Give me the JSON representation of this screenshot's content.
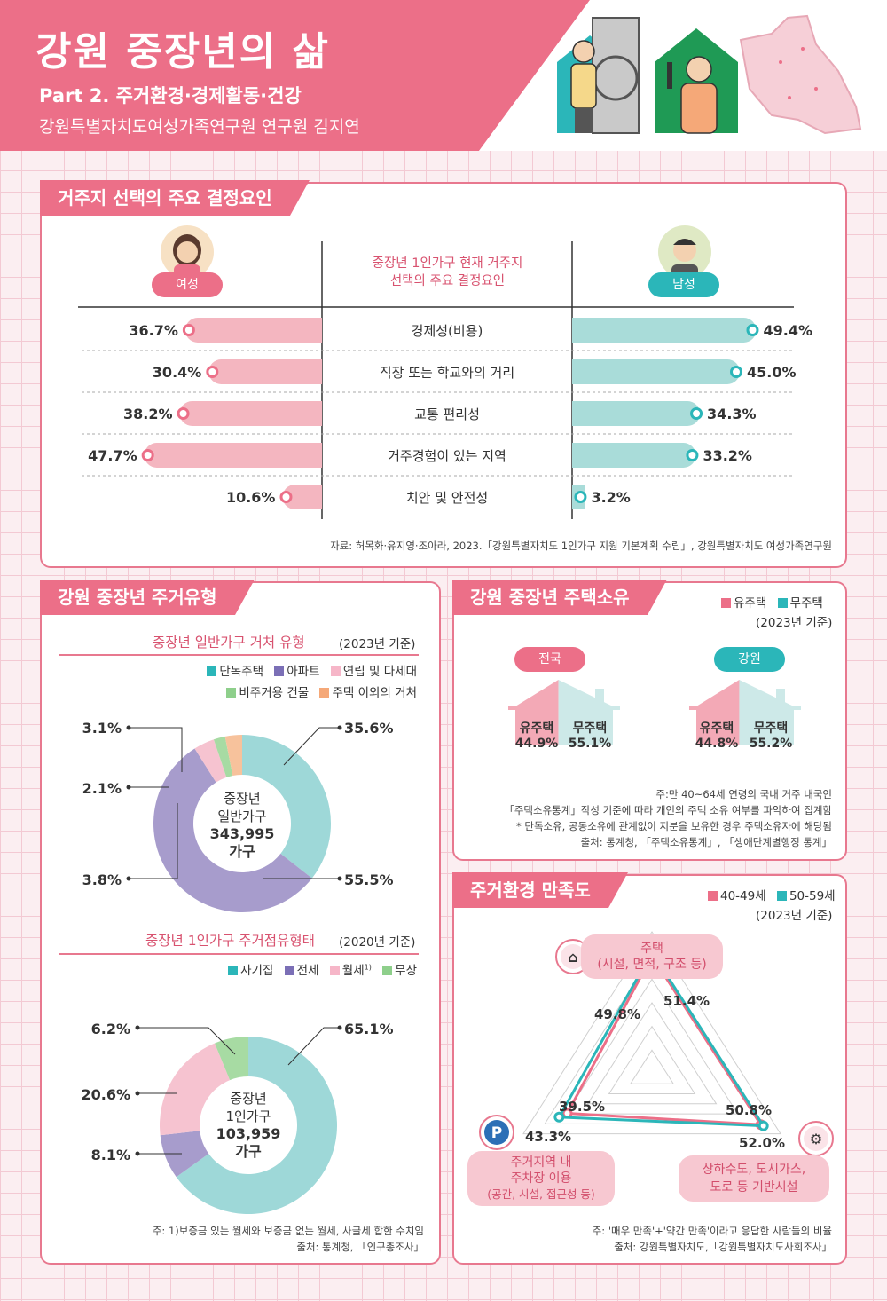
{
  "header": {
    "title": "강원 중장년의 삶",
    "part": "Part 2. 주거환경·경제활동·건강",
    "author": "강원특별자치도여성가족연구원 연구원 김지연"
  },
  "colors": {
    "pink": "#ec6f88",
    "teal": "#2bb6b9",
    "purple": "#9f93c8",
    "light_pink": "#f6c3d0",
    "green": "#8ecf8b",
    "orange": "#f5a878",
    "light_teal": "#9ed8d8",
    "bar_pink": "#f4b6c0",
    "bar_teal": "#a9dcd9"
  },
  "residence": {
    "tag": "거주지 선택의 주요 결정요인",
    "center_title_1": "중장년 1인가구 현재 거주지",
    "center_title_2": "선택의 주요 결정요인",
    "female_label": "여성",
    "male_label": "남성",
    "source": "자료: 허목화·유지영·조아라, 2023.「강원특별자치도 1인가구 지원 기본계획 수립」, 강원특별자치도 여성가족연구원"
  },
  "housing_type": {
    "tag": "강원 중장년 주거유형",
    "chart1_title": "중장년 일반가구 거처 유형",
    "chart1_year": "(2023년 기준)",
    "chart1_center_1": "중장년",
    "chart1_center_2": "일반가구",
    "chart1_center_3": "343,995",
    "chart1_center_4": "가구",
    "chart2_title": "중장년 1인가구 주거점유형태",
    "chart2_year": "(2020년 기준)",
    "chart2_center_1": "중장년",
    "chart2_center_2": "1인가구",
    "chart2_center_3": "103,959",
    "chart2_center_4": "가구",
    "note": "주: 1)보증금 있는 월세와 보증금 없는 월세, 사글세 합한 수치임",
    "source": "출처: 통계청, 「인구총조사」"
  },
  "ownership": {
    "tag": "강원 중장년 주택소유",
    "legend_own": "유주택",
    "legend_none": "무주택",
    "year": "(2023년 기준)",
    "national_label": "전국",
    "gangwon_label": "강원",
    "own_text": "유주택",
    "none_text": "무주택",
    "note_1": "주:만 40~64세 연령의 국내 거주 내국인",
    "note_2": "「주택소유통계」작성 기준에 따라 개인의 주택 소유 여부를 파악하여 집계함",
    "note_3": "* 단독소유, 공동소유에 관계없이 지분을 보유한 경우 주택소유자에 해당됨",
    "source": "출처: 통계청, 「주택소유통계」, 「생애단계별행정 통계」"
  },
  "satisfaction": {
    "tag": "주거환경 만족도",
    "legend_40": "40-49세",
    "legend_50": "50-59세",
    "year": "(2023년 기준)",
    "axis_top_1": "주택",
    "axis_top_2": "(시설, 면적, 구조 등)",
    "axis_left_1": "주거지역 내",
    "axis_left_2": "주차장 이용",
    "axis_left_3": "(공간, 시설, 접근성 등)",
    "axis_right_1": "상하수도, 도시가스,",
    "axis_right_2": "도로 등 기반시설",
    "note": "주: '매우 만족'+'약간 만족'이라고 응답한 사람들의 비율",
    "source": "출처: 강원특별자치도,「강원특별자치도사회조사」"
  },
  "chart_data": [
    {
      "type": "bar",
      "title": "중장년 1인가구 현재 거주지 선택의 주요 결정요인",
      "categories": [
        "경제성(비용)",
        "직장 또는 학교와의 거리",
        "교통 편리성",
        "거주경험이 있는 지역",
        "치안 및 안전성"
      ],
      "series": [
        {
          "name": "여성",
          "values": [
            36.7,
            30.4,
            38.2,
            47.7,
            10.6
          ],
          "labels": [
            "36.7%",
            "30.4%",
            "38.2%",
            "47.7%",
            "10.6%"
          ]
        },
        {
          "name": "남성",
          "values": [
            49.4,
            45.0,
            34.3,
            33.2,
            3.2
          ],
          "labels": [
            "49.4%",
            "45.0%",
            "34.3%",
            "33.2%",
            "3.2%"
          ]
        }
      ]
    },
    {
      "type": "pie",
      "title": "중장년 일반가구 거처 유형",
      "categories": [
        "단독주택",
        "아파트",
        "연립 및 다세대",
        "비주거용 건물",
        "주택 이외의 거처"
      ],
      "values": [
        35.6,
        55.5,
        3.8,
        2.1,
        3.1
      ],
      "labels": [
        "35.6%",
        "55.5%",
        "3.8%",
        "2.1%",
        "3.1%"
      ]
    },
    {
      "type": "pie",
      "title": "중장년 1인가구 주거점유형태",
      "categories": [
        "자기집",
        "전세",
        "월세",
        "무상"
      ],
      "legend_sup": [
        "",
        "",
        "1)",
        ""
      ],
      "values": [
        65.1,
        8.1,
        20.6,
        6.2
      ],
      "labels": [
        "65.1%",
        "8.1%",
        "20.6%",
        "6.2%"
      ]
    },
    {
      "type": "bar",
      "title": "강원 중장년 주택소유",
      "categories": [
        "전국",
        "강원"
      ],
      "series": [
        {
          "name": "유주택",
          "values": [
            44.9,
            44.8
          ],
          "labels": [
            "44.9%",
            "44.8%"
          ]
        },
        {
          "name": "무주택",
          "values": [
            55.1,
            55.2
          ],
          "labels": [
            "55.1%",
            "55.2%"
          ]
        }
      ]
    },
    {
      "type": "radar",
      "title": "주거환경 만족도",
      "categories": [
        "주택",
        "상하수도, 도시가스, 도로 등 기반시설",
        "주거지역 내 주차장 이용"
      ],
      "series": [
        {
          "name": "40-49세",
          "values": [
            49.8,
            50.8,
            39.5
          ],
          "labels": [
            "49.8%",
            "50.8%",
            "39.5%"
          ]
        },
        {
          "name": "50-59세",
          "values": [
            51.4,
            52.0,
            43.3
          ],
          "labels": [
            "51.4%",
            "52.0%",
            "43.3%"
          ]
        }
      ]
    }
  ]
}
